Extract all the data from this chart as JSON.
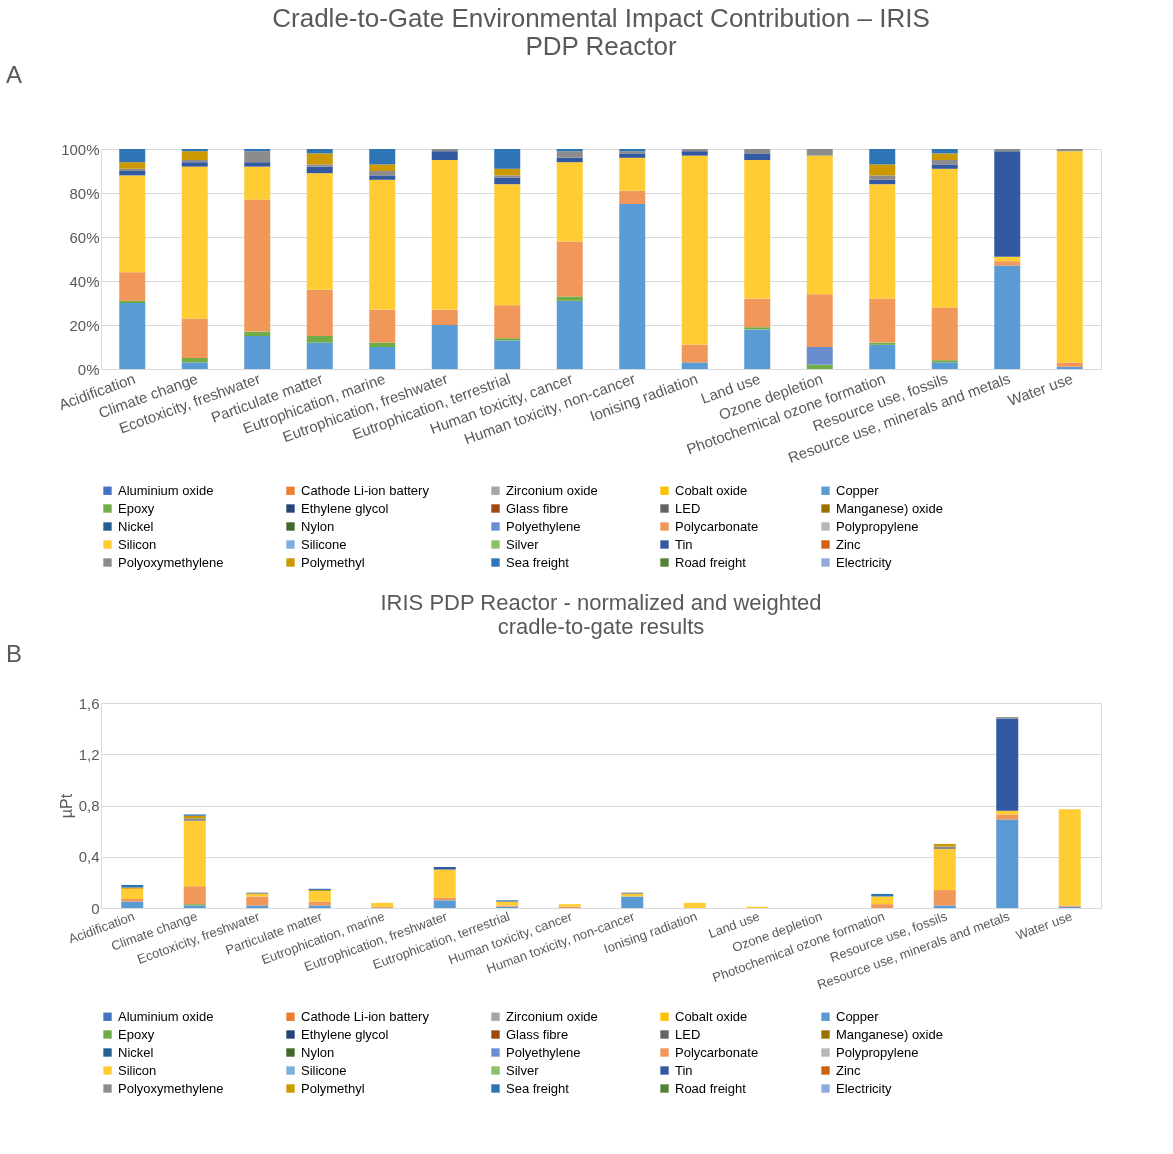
{
  "chart_data": [
    {
      "type": "bar",
      "stacked": true,
      "title": "Cradle-to-Gate Environmental Impact Contribution – IRIS PDP Reactor",
      "annotations": [
        "A"
      ],
      "grid": "y",
      "legend": "bottom",
      "categories": [
        "Acidification",
        "Climate change",
        "Ecotoxicity, freshwater",
        "Particulate matter",
        "Eutrophication, marine",
        "Eutrophication, freshwater",
        "Eutrophication, terrestrial",
        "Human toxicity, cancer",
        "Human toxicity, non-cancer",
        "Ionising radiation",
        "Land use",
        "Ozone depletion",
        "Photochemical ozone formation",
        "Resource use, fossils",
        "Resource use, minerals and metals",
        "Water use"
      ],
      "ylim": [
        0,
        100
      ],
      "yticks": [
        {
          "value": 0,
          "label": "0%"
        },
        {
          "value": 20,
          "label": "20%"
        },
        {
          "value": 40,
          "label": "40%"
        },
        {
          "value": 60,
          "label": "60%"
        },
        {
          "value": 80,
          "label": "80%"
        },
        {
          "value": 100,
          "label": "100%"
        }
      ],
      "series": [
        {
          "name": "Aluminium oxide",
          "color": "#4472c4",
          "values": [
            0,
            0,
            0,
            0,
            0,
            0,
            0,
            0,
            0,
            0,
            0,
            0,
            0,
            0,
            0,
            0
          ]
        },
        {
          "name": "Cathode Li-ion battery",
          "color": "#ed7d31",
          "values": [
            0,
            0,
            0,
            0,
            0,
            0,
            0,
            0,
            0,
            0,
            0,
            0,
            0,
            0,
            0,
            0
          ]
        },
        {
          "name": "Zirconium oxide",
          "color": "#a5a5a5",
          "values": [
            0,
            0,
            0,
            0,
            0,
            0,
            0,
            0,
            0,
            0,
            0,
            0,
            0,
            0,
            0,
            0
          ]
        },
        {
          "name": "Cobalt oxide",
          "color": "#ffc000",
          "values": [
            0,
            0,
            0,
            0,
            0,
            0,
            0,
            0,
            0,
            0,
            0,
            0,
            0,
            0,
            0,
            0
          ]
        },
        {
          "name": "Copper",
          "color": "#5b9bd5",
          "values": [
            30,
            3,
            15,
            12,
            10,
            20,
            13,
            31,
            75,
            3,
            18,
            0,
            11,
            3,
            47,
            1
          ]
        },
        {
          "name": "Epoxy",
          "color": "#70ad47",
          "values": [
            1,
            2,
            2,
            3,
            2,
            0,
            1,
            2,
            0,
            0,
            1,
            2,
            1,
            1,
            0,
            0
          ]
        },
        {
          "name": "Ethylene glycol",
          "color": "#264478",
          "values": [
            0,
            0,
            0,
            0,
            0,
            0,
            0,
            0,
            0,
            0,
            0,
            0,
            0,
            0,
            0,
            0
          ]
        },
        {
          "name": "Glass fibre",
          "color": "#9e480e",
          "values": [
            0,
            0,
            0,
            0,
            0,
            0,
            0,
            0,
            0,
            0,
            0,
            0,
            0,
            0,
            0,
            0
          ]
        },
        {
          "name": "LED",
          "color": "#636363",
          "values": [
            0,
            0,
            0,
            0,
            0,
            0,
            0,
            0,
            0,
            0,
            0,
            0,
            0,
            0,
            0,
            0
          ]
        },
        {
          "name": "Manganese) oxide",
          "color": "#997300",
          "values": [
            0,
            0,
            0,
            0,
            0,
            0,
            0,
            0,
            0,
            0,
            0,
            0,
            0,
            0,
            0,
            0
          ]
        },
        {
          "name": "Nickel",
          "color": "#255e91",
          "values": [
            0,
            0,
            0,
            0,
            0,
            0,
            0,
            0,
            0,
            0,
            0,
            0,
            0,
            0,
            0,
            0
          ]
        },
        {
          "name": "Nylon",
          "color": "#43682b",
          "values": [
            0,
            0,
            0,
            0,
            0,
            0,
            0,
            0,
            0,
            0,
            0,
            0,
            0,
            0,
            0,
            0
          ]
        },
        {
          "name": "Polyethylene",
          "color": "#698ed0",
          "values": [
            0,
            0,
            0,
            0,
            0,
            0,
            0,
            0,
            0,
            0,
            0,
            8,
            0,
            0,
            0,
            0
          ]
        },
        {
          "name": "Polycarbonate",
          "color": "#f1975a",
          "values": [
            13,
            18,
            60,
            21,
            15,
            7,
            15,
            25,
            6,
            8,
            13,
            24,
            20,
            24,
            2,
            2
          ]
        },
        {
          "name": "Polypropylene",
          "color": "#b7b7b7",
          "values": [
            0,
            0,
            0,
            0,
            0,
            0,
            0,
            0,
            0,
            0,
            0,
            0,
            0,
            0,
            0,
            0
          ]
        },
        {
          "name": "Silicon",
          "color": "#ffcd33",
          "values": [
            44,
            69,
            15,
            53,
            59,
            68,
            55,
            36,
            15,
            86,
            63,
            63,
            52,
            63,
            2,
            96
          ]
        },
        {
          "name": "Silicone",
          "color": "#7cafdd",
          "values": [
            0,
            0,
            0,
            0,
            0,
            0,
            0,
            0,
            0,
            0,
            0,
            0,
            0,
            0,
            0,
            0
          ]
        },
        {
          "name": "Silver",
          "color": "#8cc168",
          "values": [
            0,
            0,
            0,
            0,
            0,
            0,
            0,
            0,
            0,
            0,
            0,
            0,
            0,
            0,
            0,
            0
          ]
        },
        {
          "name": "Tin",
          "color": "#335aa1",
          "values": [
            2,
            2,
            2,
            3,
            2,
            4,
            3,
            2,
            2,
            2,
            3,
            0,
            2,
            2,
            48,
            0
          ]
        },
        {
          "name": "Zinc",
          "color": "#d26012",
          "values": [
            0,
            0,
            0,
            0,
            0,
            0,
            0,
            0,
            0,
            0,
            0,
            0,
            0,
            0,
            0,
            0
          ]
        },
        {
          "name": "Polyoxymethylene",
          "color": "#8c8c8c",
          "values": [
            1,
            1,
            5,
            1,
            2,
            1,
            1,
            3,
            1,
            1,
            2,
            3,
            2,
            2,
            1,
            1
          ]
        },
        {
          "name": "Polymethyl",
          "color": "#cc9a00",
          "values": [
            3,
            4,
            0,
            5,
            3,
            0,
            3,
            0,
            0,
            0,
            0,
            0,
            5,
            3,
            0,
            0
          ]
        },
        {
          "name": "Sea freight",
          "color": "#2e75b6",
          "values": [
            6,
            1,
            1,
            2,
            7,
            0,
            9,
            1,
            1,
            0,
            0,
            0,
            7,
            2,
            0,
            0
          ]
        },
        {
          "name": "Road freight",
          "color": "#548235",
          "values": [
            0,
            0,
            0,
            0,
            0,
            0,
            0,
            0,
            0,
            0,
            0,
            0,
            0,
            0,
            0,
            0
          ]
        },
        {
          "name": "Electricity",
          "color": "#8faadc",
          "values": [
            0,
            0,
            0,
            0,
            0,
            0,
            0,
            0,
            0,
            0,
            0,
            0,
            0,
            0,
            0,
            0
          ]
        }
      ]
    },
    {
      "type": "bar",
      "stacked": true,
      "title": "IRIS PDP Reactor - normalized and weighted cradle-to-gate results",
      "annotations": [
        "B"
      ],
      "ylabel": "µPt",
      "grid": "y",
      "legend": "bottom",
      "categories": [
        "Acidification",
        "Climate change",
        "Ecotoxicity, freshwater",
        "Particulate matter",
        "Eutrophication, marine",
        "Eutrophication, freshwater",
        "Eutrophication, terrestrial",
        "Human toxicity, cancer",
        "Human toxicity, non-cancer",
        "Ionising radiation",
        "Land use",
        "Ozone depletion",
        "Photochemical ozone formation",
        "Resource use, fossils",
        "Resource use, minerals and metals",
        "Water use"
      ],
      "ylim": [
        0,
        1.6
      ],
      "yticks": [
        {
          "value": 0,
          "label": "0"
        },
        {
          "value": 0.4,
          "label": "0,4"
        },
        {
          "value": 0.8,
          "label": "0,8"
        },
        {
          "value": 1.2,
          "label": "1,2"
        },
        {
          "value": 1.6,
          "label": "1,6"
        }
      ],
      "series": [
        {
          "name": "Aluminium oxide",
          "color": "#4472c4",
          "values": [
            0,
            0,
            0,
            0,
            0,
            0,
            0,
            0,
            0,
            0,
            0,
            0,
            0,
            0,
            0,
            0
          ]
        },
        {
          "name": "Cathode Li-ion battery",
          "color": "#ed7d31",
          "values": [
            0,
            0,
            0,
            0,
            0,
            0,
            0,
            0,
            0,
            0,
            0,
            0,
            0,
            0,
            0,
            0
          ]
        },
        {
          "name": "Zirconium oxide",
          "color": "#a5a5a5",
          "values": [
            0,
            0,
            0,
            0,
            0,
            0,
            0,
            0,
            0,
            0,
            0,
            0,
            0,
            0,
            0,
            0
          ]
        },
        {
          "name": "Cobalt oxide",
          "color": "#ffc000",
          "values": [
            0,
            0,
            0,
            0,
            0,
            0,
            0,
            0,
            0,
            0,
            0,
            0,
            0,
            0,
            0,
            0
          ]
        },
        {
          "name": "Copper",
          "color": "#5b9bd5",
          "values": [
            0.05,
            0.02,
            0.02,
            0.02,
            0,
            0.06,
            0.01,
            0,
            0.09,
            0,
            0,
            0,
            0,
            0.02,
            0.69,
            0.01
          ]
        },
        {
          "name": "Epoxy",
          "color": "#70ad47",
          "values": [
            0,
            0.01,
            0,
            0,
            0,
            0,
            0,
            0,
            0,
            0,
            0,
            0,
            0,
            0,
            0,
            0
          ]
        },
        {
          "name": "Ethylene glycol",
          "color": "#264478",
          "values": [
            0,
            0,
            0,
            0,
            0,
            0,
            0,
            0,
            0,
            0,
            0,
            0,
            0,
            0,
            0,
            0
          ]
        },
        {
          "name": "Glass fibre",
          "color": "#9e480e",
          "values": [
            0,
            0,
            0,
            0,
            0,
            0,
            0,
            0,
            0,
            0,
            0,
            0,
            0,
            0,
            0,
            0
          ]
        },
        {
          "name": "LED",
          "color": "#636363",
          "values": [
            0,
            0,
            0,
            0,
            0,
            0,
            0,
            0,
            0,
            0,
            0,
            0,
            0,
            0,
            0,
            0
          ]
        },
        {
          "name": "Manganese) oxide",
          "color": "#997300",
          "values": [
            0,
            0,
            0,
            0,
            0,
            0,
            0,
            0,
            0,
            0,
            0,
            0,
            0,
            0,
            0,
            0
          ]
        },
        {
          "name": "Nickel",
          "color": "#255e91",
          "values": [
            0,
            0,
            0,
            0,
            0,
            0,
            0,
            0,
            0,
            0,
            0,
            0,
            0,
            0,
            0,
            0
          ]
        },
        {
          "name": "Nylon",
          "color": "#43682b",
          "values": [
            0,
            0,
            0,
            0,
            0,
            0,
            0,
            0,
            0,
            0,
            0,
            0,
            0,
            0,
            0,
            0
          ]
        },
        {
          "name": "Polyethylene",
          "color": "#698ed0",
          "values": [
            0,
            0,
            0,
            0,
            0,
            0,
            0,
            0,
            0,
            0,
            0,
            0,
            0,
            0,
            0,
            0
          ]
        },
        {
          "name": "Polycarbonate",
          "color": "#f1975a",
          "values": [
            0.02,
            0.14,
            0.07,
            0.03,
            0.01,
            0.02,
            0.01,
            0.01,
            0,
            0,
            0,
            0,
            0.03,
            0.12,
            0.04,
            0.01
          ]
        },
        {
          "name": "Polypropylene",
          "color": "#b7b7b7",
          "values": [
            0,
            0,
            0,
            0,
            0,
            0,
            0,
            0,
            0,
            0,
            0,
            0,
            0,
            0,
            0,
            0
          ]
        },
        {
          "name": "Silicon",
          "color": "#ffcd33",
          "values": [
            0.08,
            0.51,
            0.02,
            0.08,
            0.03,
            0.22,
            0.03,
            0.02,
            0.02,
            0.04,
            0.01,
            0,
            0.06,
            0.32,
            0.03,
            0.75
          ]
        },
        {
          "name": "Silicone",
          "color": "#7cafdd",
          "values": [
            0,
            0,
            0,
            0,
            0,
            0,
            0,
            0,
            0,
            0,
            0,
            0,
            0,
            0,
            0,
            0
          ]
        },
        {
          "name": "Silver",
          "color": "#8cc168",
          "values": [
            0,
            0,
            0,
            0,
            0,
            0,
            0,
            0,
            0,
            0,
            0,
            0,
            0,
            0,
            0,
            0
          ]
        },
        {
          "name": "Tin",
          "color": "#335aa1",
          "values": [
            0,
            0,
            0,
            0,
            0,
            0.02,
            0,
            0,
            0,
            0,
            0,
            0,
            0,
            0,
            0.72,
            0
          ]
        },
        {
          "name": "Zinc",
          "color": "#d26012",
          "values": [
            0,
            0,
            0,
            0,
            0,
            0,
            0,
            0,
            0,
            0,
            0,
            0,
            0,
            0,
            0,
            0
          ]
        },
        {
          "name": "Polyoxymethylene",
          "color": "#8c8c8c",
          "values": [
            0,
            0.02,
            0.01,
            0,
            0,
            0,
            0,
            0,
            0.01,
            0,
            0,
            0,
            0,
            0.02,
            0.01,
            0
          ]
        },
        {
          "name": "Polymethyl",
          "color": "#cc9a00",
          "values": [
            0.01,
            0.02,
            0,
            0.01,
            0,
            0,
            0,
            0,
            0,
            0,
            0,
            0,
            0,
            0.02,
            0,
            0
          ]
        },
        {
          "name": "Sea freight",
          "color": "#2e75b6",
          "values": [
            0.02,
            0.01,
            0,
            0.01,
            0,
            0,
            0.01,
            0,
            0,
            0,
            0,
            0,
            0.02,
            0,
            0,
            0
          ]
        },
        {
          "name": "Road freight",
          "color": "#548235",
          "values": [
            0,
            0,
            0,
            0,
            0,
            0,
            0,
            0,
            0,
            0,
            0,
            0,
            0,
            0,
            0,
            0
          ]
        },
        {
          "name": "Electricity",
          "color": "#8faadc",
          "values": [
            0,
            0,
            0,
            0,
            0,
            0,
            0,
            0,
            0,
            0,
            0,
            0,
            0,
            0,
            0,
            0
          ]
        }
      ]
    }
  ]
}
